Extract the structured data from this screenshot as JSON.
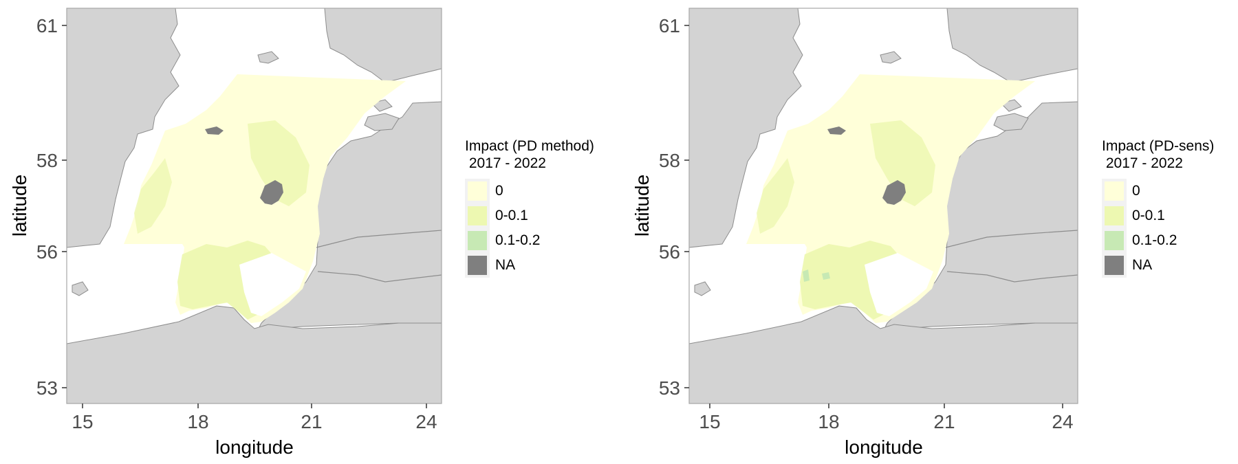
{
  "panels": [
    {
      "legend_title": "Impact (PD method)\n 2017 - 2022",
      "xlabel": "longitude",
      "ylabel": "latitude"
    },
    {
      "legend_title": "Impact (PD-sens)\n 2017 - 2022",
      "xlabel": "longitude",
      "ylabel": "latitude"
    }
  ],
  "x_ticks": [
    "15",
    "18",
    "21",
    "24"
  ],
  "y_ticks": [
    "61",
    "58",
    "56",
    "53"
  ],
  "legend_items": [
    {
      "label": "0",
      "color": "#ffffd9"
    },
    {
      "label": "0-0.1",
      "color": "#edf8b1"
    },
    {
      "label": "0.1-0.2",
      "color": "#c7e9b4"
    },
    {
      "label": "NA",
      "color": "#7f7f7f"
    }
  ],
  "colors": {
    "land": "#d3d3d3",
    "sea": "#ffffff",
    "coastline": "#8c8c8c",
    "impact_zero": "#ffffd9",
    "impact_low": "#edf8b1",
    "impact_mid": "#c7e9b4",
    "na": "#7f7f7f",
    "frame": "#a6a6a6"
  }
}
